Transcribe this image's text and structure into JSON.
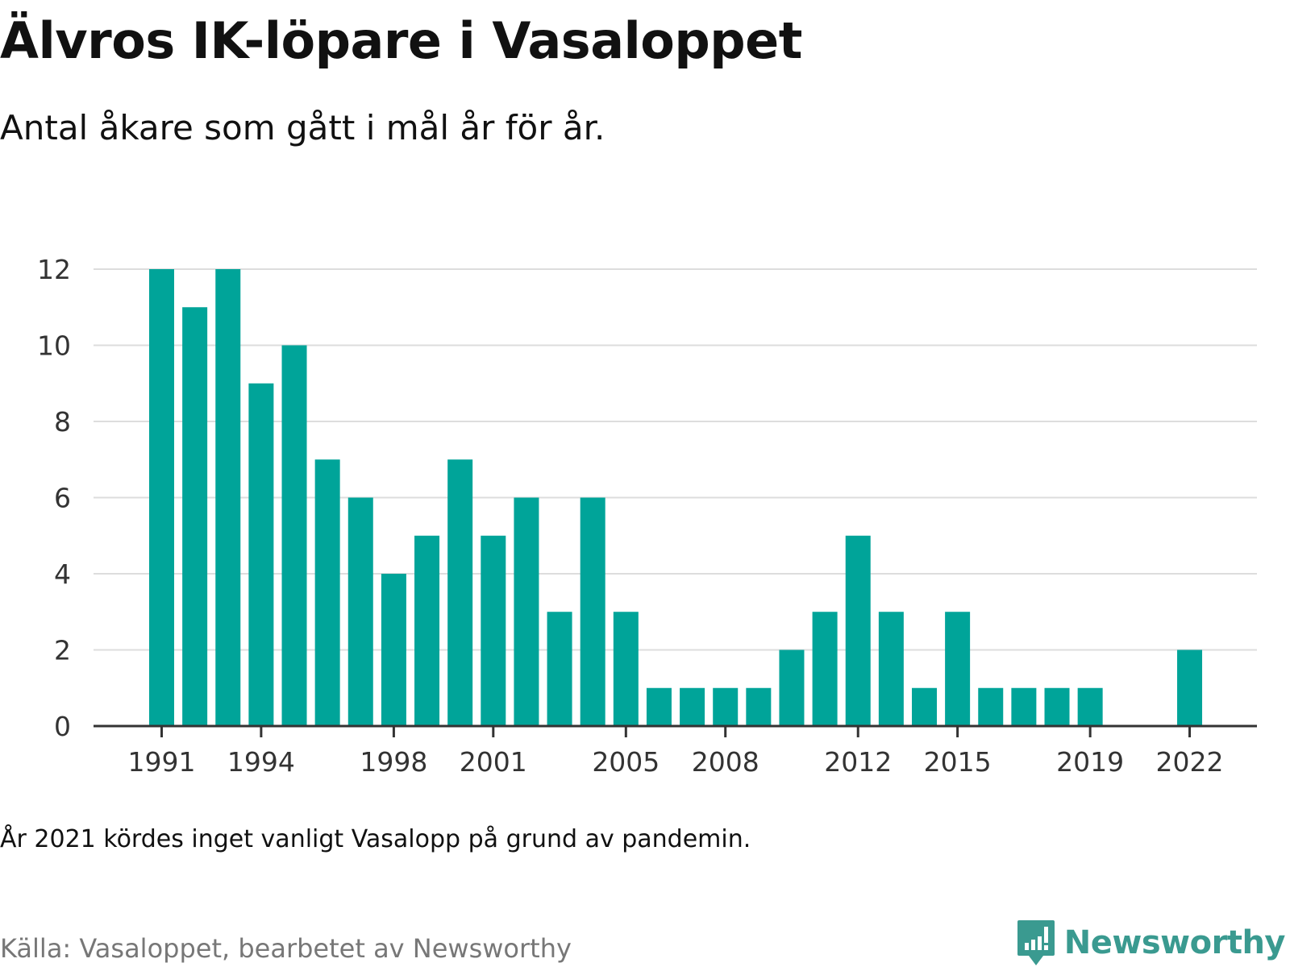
{
  "title": "Älvros IK-löpare i Vasaloppet",
  "subtitle": "Antal åkare som gått i mål år för år.",
  "note": "År 2021 kördes inget vanligt Vasalopp på grund av pandemin.",
  "source": "Källa: Vasaloppet, bearbetet av Newsworthy",
  "brand": {
    "name": "Newsworthy",
    "icon": "newsworthy-logo-icon",
    "color": "#3a9a90"
  },
  "chart_data": {
    "type": "bar",
    "x": [
      1991,
      1992,
      1993,
      1994,
      1995,
      1996,
      1997,
      1998,
      1999,
      2000,
      2001,
      2002,
      2003,
      2004,
      2005,
      2006,
      2007,
      2008,
      2009,
      2010,
      2011,
      2012,
      2013,
      2014,
      2015,
      2016,
      2017,
      2018,
      2019,
      2020,
      2021,
      2022
    ],
    "values": [
      12,
      11,
      12,
      9,
      10,
      7,
      6,
      4,
      5,
      7,
      5,
      6,
      3,
      6,
      3,
      1,
      1,
      1,
      1,
      2,
      3,
      5,
      3,
      1,
      3,
      1,
      1,
      1,
      1,
      0,
      0,
      2
    ],
    "x_tick_labels": [
      1991,
      1994,
      1998,
      2001,
      2005,
      2008,
      2012,
      2015,
      2019,
      2022
    ],
    "y_ticks": [
      0,
      2,
      4,
      6,
      8,
      10,
      12
    ],
    "ylim": [
      0,
      12
    ],
    "grid": true,
    "bar_color": "#00a499"
  }
}
